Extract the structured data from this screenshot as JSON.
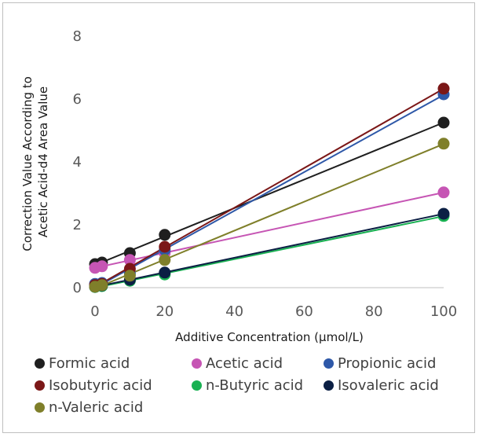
{
  "chart_data": {
    "type": "scatter",
    "xlabel": "Additive Concentration (μmol/L)",
    "ylabel_lines": [
      "Correction Value According to",
      "Acetic Acid-d4 Area Value"
    ],
    "xlim": [
      0,
      100
    ],
    "ylim": [
      0,
      8
    ],
    "x_ticks": [
      "0",
      "20",
      "40",
      "60",
      "80",
      "100"
    ],
    "y_ticks": [
      "0",
      "2",
      "4",
      "6",
      "8"
    ],
    "grid": false,
    "legend_position": "bottom",
    "trendlines": true,
    "series": [
      {
        "name": "Formic acid",
        "color": "#1f1f1f",
        "x": [
          0,
          2,
          10,
          20,
          100
        ],
        "y": [
          0.75,
          0.8,
          1.1,
          1.68,
          5.25
        ]
      },
      {
        "name": "Acetic acid",
        "color": "#c655b4",
        "x": [
          0,
          2,
          10,
          20,
          100
        ],
        "y": [
          0.63,
          0.68,
          0.88,
          1.1,
          3.03
        ]
      },
      {
        "name": "Propionic acid",
        "color": "#2e58a8",
        "x": [
          0,
          2,
          10,
          20,
          100
        ],
        "y": [
          0.12,
          0.15,
          0.45,
          1.2,
          6.15
        ]
      },
      {
        "name": "Isobutyric acid",
        "color": "#7b1717",
        "x": [
          0,
          2,
          10,
          20,
          100
        ],
        "y": [
          0.08,
          0.12,
          0.6,
          1.3,
          6.33
        ]
      },
      {
        "name": "n-Butyric acid",
        "color": "#19b152",
        "x": [
          0,
          2,
          10,
          20,
          100
        ],
        "y": [
          0.02,
          0.05,
          0.22,
          0.42,
          2.28
        ]
      },
      {
        "name": "Isovaleric acid",
        "color": "#0b1f44",
        "x": [
          0,
          2,
          10,
          20,
          100
        ],
        "y": [
          0.03,
          0.07,
          0.25,
          0.48,
          2.35
        ]
      },
      {
        "name": "n-Valeric acid",
        "color": "#7f7f2a",
        "x": [
          0,
          2,
          10,
          20,
          100
        ],
        "y": [
          0.03,
          0.08,
          0.38,
          0.88,
          4.58
        ]
      }
    ]
  }
}
